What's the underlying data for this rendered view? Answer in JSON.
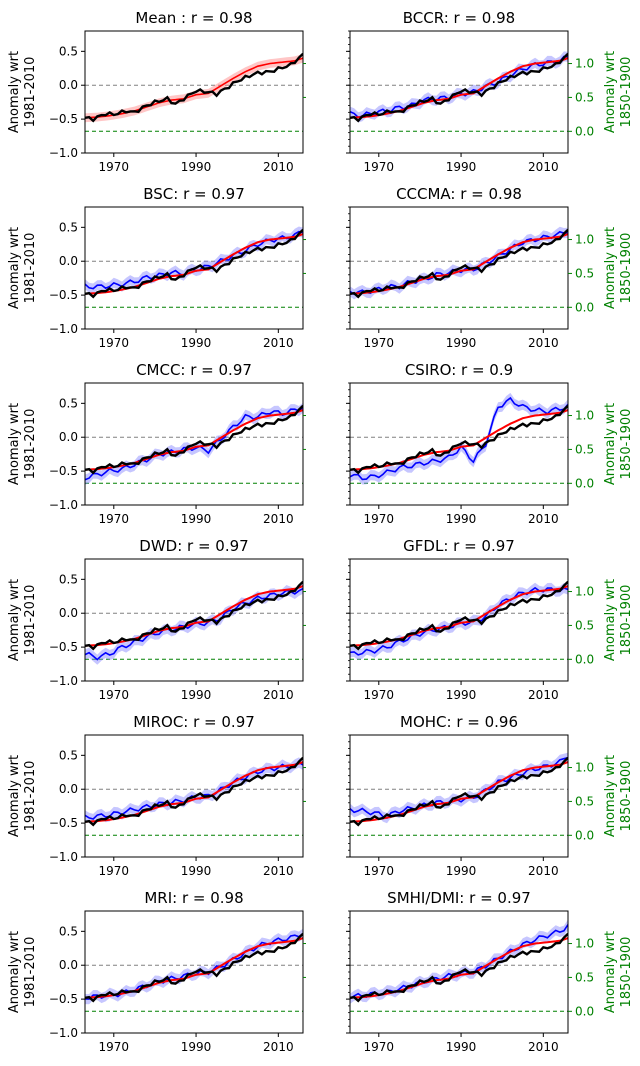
{
  "chart_data": {
    "type": "line",
    "x_range": [
      1963,
      2016
    ],
    "x_ticks": [
      "1970",
      "1990",
      "2010"
    ],
    "x_tick_values": [
      1970,
      1990,
      2010
    ],
    "left_axis": {
      "label_line1": "Anomaly wrt",
      "label_line2": "1981-2010",
      "ylim": [
        -1.0,
        0.8
      ],
      "ticks": [
        0.5,
        0.0,
        -0.5,
        -1.0
      ],
      "tick_labels": [
        "0.5",
        "0.0",
        "−0.5",
        "−1.0"
      ]
    },
    "right_axis": {
      "label_line1": "Anomaly wrt",
      "label_line2": "1850-1900",
      "color": "#008000",
      "offset": 0.68,
      "ticks": [
        1.0,
        0.5,
        0.0
      ],
      "tick_labels": [
        "1.0",
        "0.5",
        "0.0"
      ]
    },
    "reference_lines": {
      "zero_color": "#808080",
      "preindustrial_value": -0.68,
      "preindustrial_color": "#008000"
    },
    "colors": {
      "observed": "#000000",
      "multimodel_mean": "#ff0000",
      "model": "#0000ff",
      "model_band": "#8080ff",
      "mean_band": "#ff8080"
    },
    "observed_x": [
      1963,
      1965,
      1968,
      1970,
      1973,
      1975,
      1978,
      1980,
      1983,
      1985,
      1988,
      1990,
      1993,
      1995,
      1998,
      2000,
      2003,
      2005,
      2008,
      2010,
      2013,
      2016
    ],
    "observed_y": [
      -0.48,
      -0.5,
      -0.42,
      -0.43,
      -0.38,
      -0.4,
      -0.3,
      -0.25,
      -0.2,
      -0.28,
      -0.16,
      -0.08,
      -0.1,
      -0.13,
      -0.02,
      0.06,
      0.14,
      0.18,
      0.2,
      0.24,
      0.3,
      0.45
    ],
    "mean_x": [
      1963,
      1966,
      1969,
      1972,
      1975,
      1978,
      1981,
      1984,
      1987,
      1990,
      1993,
      1996,
      1999,
      2002,
      2005,
      2008,
      2011,
      2014,
      2016
    ],
    "mean_y": [
      -0.48,
      -0.47,
      -0.45,
      -0.42,
      -0.38,
      -0.32,
      -0.26,
      -0.22,
      -0.2,
      -0.14,
      -0.12,
      -0.01,
      0.1,
      0.2,
      0.28,
      0.32,
      0.34,
      0.36,
      0.4
    ],
    "panels": [
      {
        "title": "Mean : r = 0.98",
        "model_y": null
      },
      {
        "title": "BCCR: r = 0.98",
        "model_y": [
          -0.42,
          -0.45,
          -0.4,
          -0.38,
          -0.33,
          -0.3,
          -0.22,
          -0.2,
          -0.18,
          -0.13,
          -0.1,
          -0.02,
          0.05,
          0.15,
          0.24,
          0.3,
          0.33,
          0.36,
          0.42
        ]
      },
      {
        "title": "BSC: r = 0.97",
        "model_y": [
          -0.37,
          -0.38,
          -0.36,
          -0.34,
          -0.3,
          -0.24,
          -0.21,
          -0.17,
          -0.18,
          -0.12,
          -0.08,
          0.0,
          0.08,
          0.16,
          0.25,
          0.31,
          0.34,
          0.38,
          0.45
        ]
      },
      {
        "title": "CCCMA: r = 0.98",
        "model_y": [
          -0.45,
          -0.46,
          -0.43,
          -0.38,
          -0.37,
          -0.3,
          -0.27,
          -0.2,
          -0.17,
          -0.13,
          -0.12,
          -0.03,
          0.07,
          0.18,
          0.28,
          0.32,
          0.36,
          0.4,
          0.45
        ]
      },
      {
        "title": "CMCC: r = 0.97",
        "model_y": [
          -0.6,
          -0.55,
          -0.5,
          -0.47,
          -0.4,
          -0.33,
          -0.25,
          -0.22,
          -0.18,
          -0.15,
          -0.2,
          -0.03,
          0.15,
          0.3,
          0.3,
          0.38,
          0.35,
          0.4,
          0.44
        ]
      },
      {
        "title": "CSIRO: r = 0.9",
        "model_y": [
          -0.55,
          -0.6,
          -0.58,
          -0.52,
          -0.45,
          -0.42,
          -0.38,
          -0.35,
          -0.3,
          -0.15,
          -0.35,
          -0.1,
          0.45,
          0.55,
          0.45,
          0.4,
          0.38,
          0.42,
          0.46
        ]
      },
      {
        "title": "DWD: r = 0.97",
        "model_y": [
          -0.6,
          -0.65,
          -0.6,
          -0.5,
          -0.43,
          -0.35,
          -0.28,
          -0.24,
          -0.2,
          -0.16,
          -0.14,
          -0.07,
          0.07,
          0.15,
          0.22,
          0.26,
          0.3,
          0.32,
          0.33
        ]
      },
      {
        "title": "GFDL: r = 0.97",
        "model_y": [
          -0.6,
          -0.58,
          -0.55,
          -0.5,
          -0.42,
          -0.35,
          -0.28,
          -0.24,
          -0.2,
          -0.15,
          -0.13,
          -0.05,
          0.12,
          0.22,
          0.3,
          0.34,
          0.35,
          0.34,
          0.34
        ]
      },
      {
        "title": "MIROC: r = 0.97",
        "model_y": [
          -0.42,
          -0.4,
          -0.38,
          -0.34,
          -0.3,
          -0.26,
          -0.22,
          -0.2,
          -0.16,
          -0.12,
          -0.1,
          -0.01,
          0.1,
          0.18,
          0.26,
          0.3,
          0.33,
          0.35,
          0.38
        ]
      },
      {
        "title": "MOHC: r = 0.96",
        "model_y": [
          -0.3,
          -0.32,
          -0.35,
          -0.4,
          -0.32,
          -0.28,
          -0.24,
          -0.2,
          -0.18,
          -0.15,
          -0.12,
          -0.02,
          0.1,
          0.17,
          0.24,
          0.3,
          0.34,
          0.4,
          0.5
        ]
      },
      {
        "title": "MRI: r = 0.98",
        "model_y": [
          -0.48,
          -0.46,
          -0.44,
          -0.42,
          -0.36,
          -0.3,
          -0.24,
          -0.2,
          -0.16,
          -0.12,
          -0.1,
          -0.02,
          0.08,
          0.18,
          0.28,
          0.34,
          0.38,
          0.42,
          0.48
        ]
      },
      {
        "title": "SMHI/DMI: r = 0.97",
        "model_y": [
          -0.46,
          -0.45,
          -0.42,
          -0.4,
          -0.35,
          -0.3,
          -0.24,
          -0.2,
          -0.16,
          -0.12,
          -0.1,
          -0.01,
          0.1,
          0.2,
          0.3,
          0.38,
          0.44,
          0.5,
          0.58
        ]
      }
    ]
  }
}
